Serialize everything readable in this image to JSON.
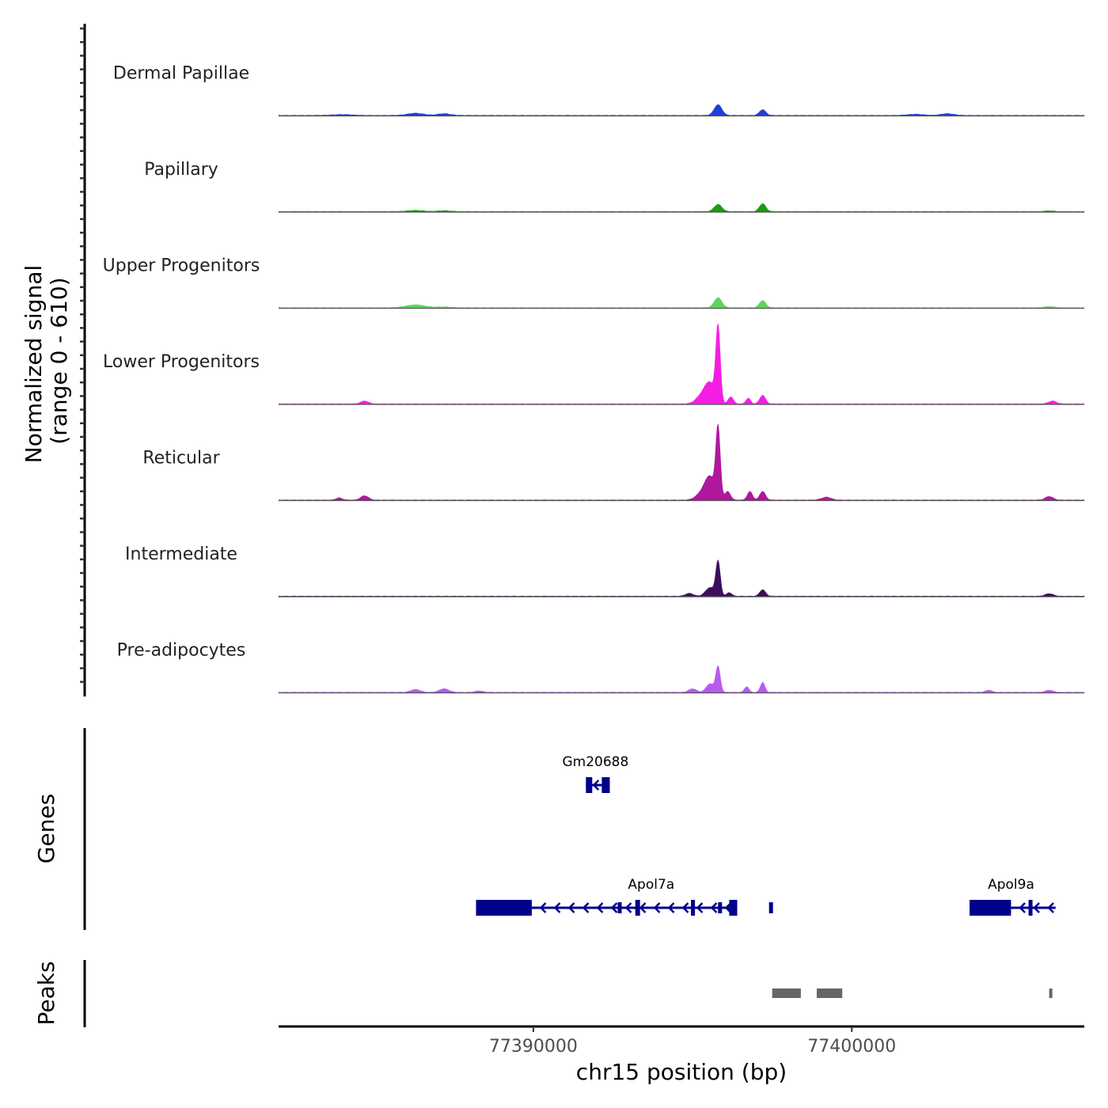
{
  "chart_data": {
    "type": "area",
    "chromosome": "chr15",
    "xlabel": "chr15 position (bp)",
    "xlim": [
      77382000,
      77407300
    ],
    "x_ticks": [
      77390000,
      77400000
    ],
    "x_tick_labels": [
      "77390000",
      "77400000"
    ],
    "ylabel": "Normalized signal",
    "ylabel_range": "(range 0 - 610)",
    "ylim": [
      0,
      610
    ],
    "colors": {
      "dermal_papillae": "#1f3fd4",
      "papillary": "#1e9a12",
      "upper_progenitors": "#5cd65c",
      "lower_progenitors": "#f21fe3",
      "reticular": "#b0179f",
      "intermediate": "#3d0d5c",
      "pre_adipocytes": "#b85af0",
      "genes": "#00008b",
      "peaks": "#666666"
    },
    "tracks": [
      {
        "name": "Dermal Papillae",
        "color_key": "dermal_papillae",
        "peaks": [
          [
            77395800,
            75,
            120
          ],
          [
            77397200,
            40,
            100
          ],
          [
            77386300,
            15,
            250
          ],
          [
            77387200,
            12,
            200
          ],
          [
            77403000,
            12,
            200
          ],
          [
            77402000,
            8,
            250
          ],
          [
            77384000,
            6,
            300
          ]
        ]
      },
      {
        "name": "Papillary",
        "color_key": "papillary",
        "peaks": [
          [
            77395800,
            50,
            120
          ],
          [
            77397200,
            55,
            100
          ],
          [
            77386300,
            8,
            250
          ],
          [
            77387200,
            6,
            200
          ],
          [
            77406200,
            5,
            150
          ]
        ]
      },
      {
        "name": "Upper Progenitors",
        "color_key": "upper_progenitors",
        "peaks": [
          [
            77395800,
            70,
            120
          ],
          [
            77397200,
            50,
            100
          ],
          [
            77386300,
            20,
            300
          ],
          [
            77387200,
            6,
            200
          ],
          [
            77406200,
            8,
            150
          ]
        ]
      },
      {
        "name": "Lower Progenitors",
        "color_key": "lower_progenitors",
        "peaks": [
          [
            77395800,
            530,
            70
          ],
          [
            77395550,
            130,
            150
          ],
          [
            77395300,
            60,
            180
          ],
          [
            77396200,
            50,
            80
          ],
          [
            77396750,
            40,
            70
          ],
          [
            77397200,
            60,
            90
          ],
          [
            77384700,
            20,
            120
          ],
          [
            77406300,
            20,
            120
          ]
        ]
      },
      {
        "name": "Reticular",
        "color_key": "reticular",
        "peaks": [
          [
            77395800,
            495,
            70
          ],
          [
            77395550,
            150,
            150
          ],
          [
            77395300,
            50,
            180
          ],
          [
            77396100,
            60,
            90
          ],
          [
            77396800,
            60,
            80
          ],
          [
            77397200,
            60,
            90
          ],
          [
            77384700,
            30,
            120
          ],
          [
            77383900,
            15,
            100
          ],
          [
            77399200,
            20,
            150
          ],
          [
            77406200,
            25,
            120
          ]
        ]
      },
      {
        "name": "Intermediate",
        "color_key": "intermediate",
        "peaks": [
          [
            77395800,
            240,
            70
          ],
          [
            77395550,
            60,
            140
          ],
          [
            77396150,
            25,
            80
          ],
          [
            77397200,
            45,
            90
          ],
          [
            77394900,
            20,
            120
          ],
          [
            77406200,
            18,
            120
          ]
        ]
      },
      {
        "name": "Pre-adipocytes",
        "color_key": "pre_adipocytes",
        "peaks": [
          [
            77395800,
            180,
            70
          ],
          [
            77395550,
            60,
            120
          ],
          [
            77396700,
            40,
            70
          ],
          [
            77397200,
            70,
            70
          ],
          [
            77386300,
            20,
            150
          ],
          [
            77387200,
            25,
            150
          ],
          [
            77395000,
            25,
            120
          ],
          [
            77388300,
            10,
            120
          ],
          [
            77404300,
            15,
            100
          ],
          [
            77406200,
            15,
            120
          ]
        ]
      }
    ],
    "genes": [
      {
        "name": "Gm20688",
        "label": "Gm20688",
        "row": 0,
        "strand": "-",
        "start": 77391650,
        "end": 77392400,
        "exons": [
          [
            77391650,
            77391850
          ],
          [
            77392150,
            77392400
          ]
        ],
        "label_at": 77391950
      },
      {
        "name": "Apol7a",
        "label": "Apol7a",
        "row": 1,
        "strand": "-",
        "start": 77388200,
        "end": 77396400,
        "exons": [
          [
            77388200,
            77389950
          ],
          [
            77392650,
            77392700
          ],
          [
            77393200,
            77393350
          ],
          [
            77396150,
            77396400
          ],
          [
            77397400,
            77397500
          ],
          [
            77395800,
            77395840
          ],
          [
            77394950,
            77395000
          ]
        ],
        "big_exons": [
          [
            77388200,
            77389950
          ],
          [
            77393200,
            77393350
          ],
          [
            77396150,
            77396400
          ],
          [
            77394950,
            77395000
          ]
        ],
        "label_at": 77393700
      },
      {
        "name": "Apol9a",
        "label": "Apol9a",
        "row": 1,
        "strand": "-",
        "start": 77403700,
        "end": 77406400,
        "exons": [
          [
            77403700,
            77405000
          ],
          [
            77405550,
            77405650
          ]
        ],
        "label_at": 77405000
      }
    ],
    "peak_regions": [
      [
        77397500,
        77398400
      ],
      [
        77398900,
        77399700
      ],
      [
        77406200,
        77406300
      ]
    ],
    "panels": {
      "genes_title": "Genes",
      "peaks_title": "Peaks"
    }
  }
}
